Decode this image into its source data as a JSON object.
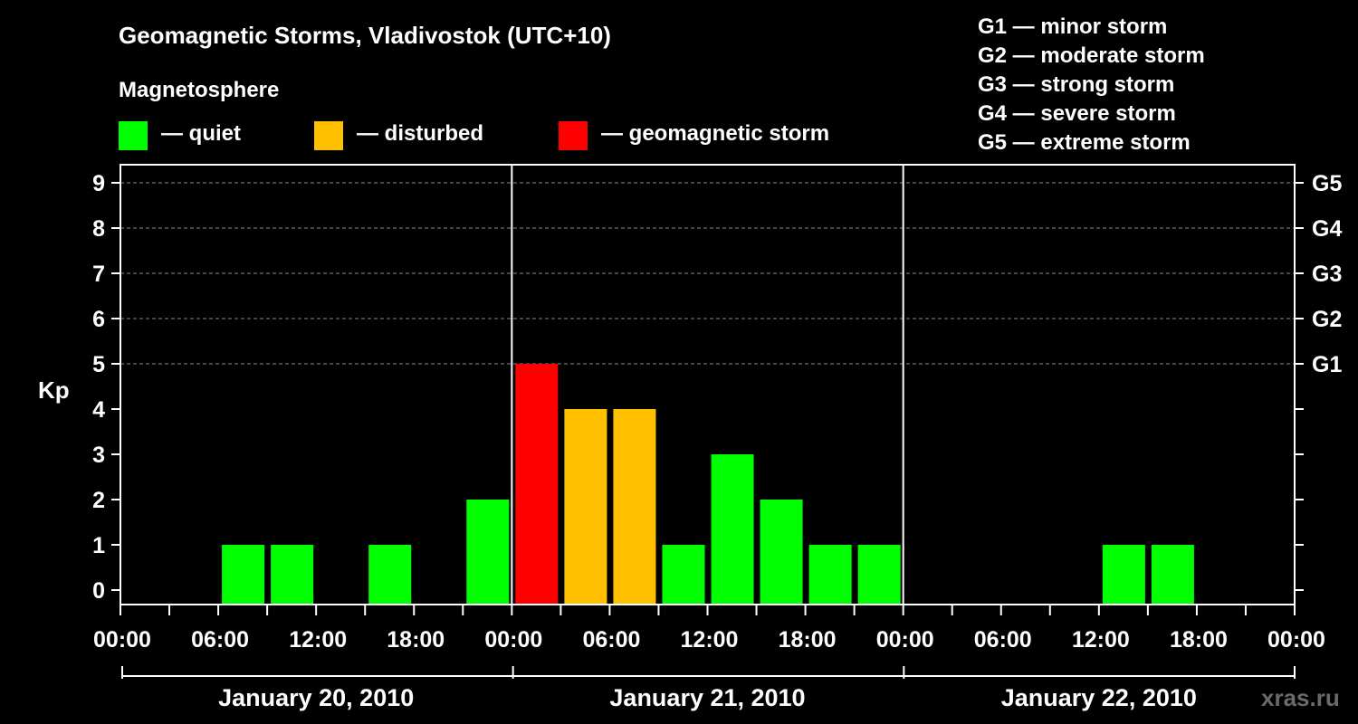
{
  "header": {
    "title": "Geomagnetic Storms, Vladivostok (UTC+10)",
    "legend_title": "Magnetosphere",
    "legend_items": [
      {
        "label": "— quiet",
        "color": "#00ff00"
      },
      {
        "label": "— disturbed",
        "color": "#ffc000"
      },
      {
        "label": "— geomagnetic storm",
        "color": "#ff0000"
      }
    ]
  },
  "storm_scale": [
    "G1 — minor storm",
    "G2 — moderate storm",
    "G3 — strong storm",
    "G4 — severe storm",
    "G5 — extreme storm"
  ],
  "watermark": "xras.ru",
  "chart_data": {
    "type": "bar",
    "ylabel": "Kp",
    "ylim": [
      0,
      9
    ],
    "y_ticks": [
      0,
      1,
      2,
      3,
      4,
      5,
      6,
      7,
      8,
      9
    ],
    "right_tick_labels": [
      {
        "y": 5,
        "label": "G1"
      },
      {
        "y": 6,
        "label": "G2"
      },
      {
        "y": 7,
        "label": "G3"
      },
      {
        "y": 8,
        "label": "G4"
      },
      {
        "y": 9,
        "label": "G5"
      }
    ],
    "x_tick_labels": [
      "00:00",
      "06:00",
      "12:00",
      "18:00",
      "00:00",
      "06:00",
      "12:00",
      "18:00",
      "00:00",
      "06:00",
      "12:00",
      "18:00",
      "00:00"
    ],
    "days": [
      "January 20, 2010",
      "January 21, 2010",
      "January 22, 2010"
    ],
    "grid": "dashed horizontal",
    "categories": [
      "Jan 20 00-03",
      "Jan 20 03-06",
      "Jan 20 06-09",
      "Jan 20 09-12",
      "Jan 20 12-15",
      "Jan 20 15-18",
      "Jan 20 18-21",
      "Jan 20 21-24",
      "Jan 21 00-03",
      "Jan 21 03-06",
      "Jan 21 06-09",
      "Jan 21 09-12",
      "Jan 21 12-15",
      "Jan 21 15-18",
      "Jan 21 18-21",
      "Jan 21 21-24",
      "Jan 22 00-03",
      "Jan 22 03-06",
      "Jan 22 06-09",
      "Jan 22 09-12",
      "Jan 22 12-15",
      "Jan 22 15-18",
      "Jan 22 18-21",
      "Jan 22 21-24"
    ],
    "values": [
      0,
      0,
      1,
      1,
      0,
      1,
      0,
      2,
      5,
      4,
      4,
      1,
      3,
      2,
      1,
      1,
      0,
      0,
      0,
      0,
      1,
      1,
      0,
      0
    ]
  }
}
